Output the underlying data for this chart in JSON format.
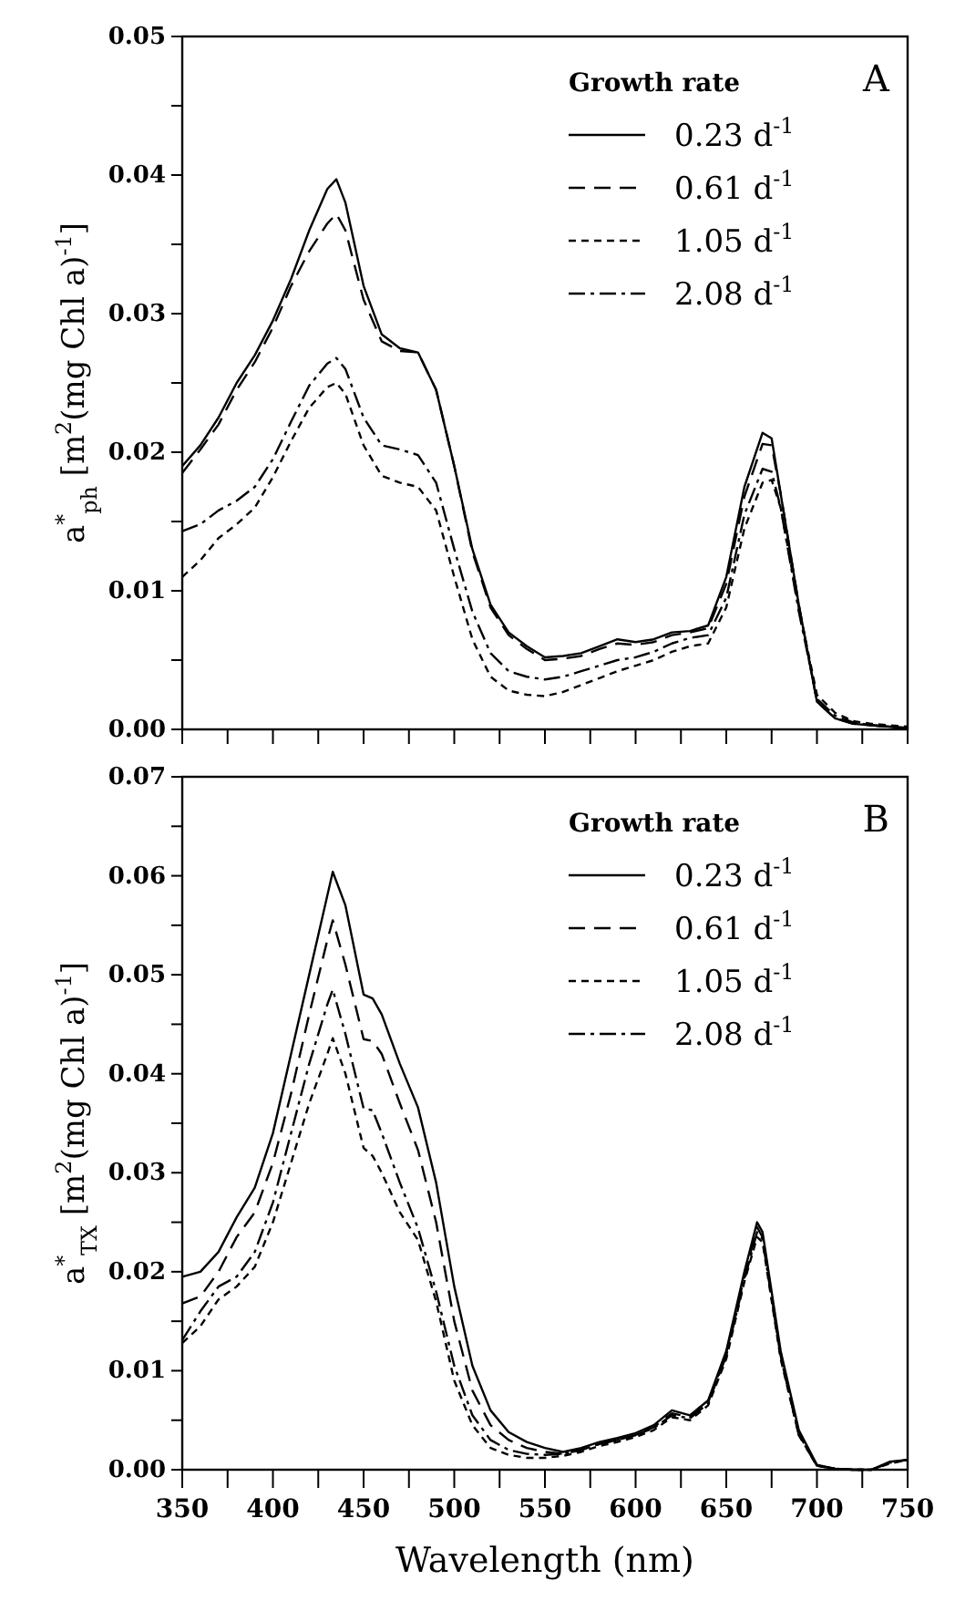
{
  "chart_data": [
    {
      "type": "line",
      "ylabel": "a$^{*}$$_{ph}$ [m$^{2}$(mg Chl a)$^{-1}$]",
      "legend_title": "Growth rate",
      "legend": "top right",
      "annotations": [
        "A"
      ],
      "tick_labels": "y",
      "xlim": [
        350,
        750
      ],
      "ylim": [
        0,
        0.05
      ],
      "xticks": [
        {
          "value": 350,
          "label": null
        },
        {
          "value": 375,
          "label": null
        },
        {
          "value": 400,
          "label": null
        },
        {
          "value": 425,
          "label": null
        },
        {
          "value": 450,
          "label": null
        },
        {
          "value": 475,
          "label": null
        },
        {
          "value": 500,
          "label": null
        },
        {
          "value": 525,
          "label": null
        },
        {
          "value": 550,
          "label": null
        },
        {
          "value": 575,
          "label": null
        },
        {
          "value": 600,
          "label": null
        },
        {
          "value": 625,
          "label": null
        },
        {
          "value": 650,
          "label": null
        },
        {
          "value": 675,
          "label": null
        },
        {
          "value": 700,
          "label": null
        },
        {
          "value": 725,
          "label": null
        },
        {
          "value": 750,
          "label": null
        }
      ],
      "yticks": [
        {
          "value": 0,
          "label": "0.00"
        },
        {
          "value": 0.005,
          "label": null
        },
        {
          "value": 0.01,
          "label": "0.01"
        },
        {
          "value": 0.015,
          "label": null
        },
        {
          "value": 0.02,
          "label": "0.02"
        },
        {
          "value": 0.025,
          "label": null
        },
        {
          "value": 0.03,
          "label": "0.03"
        },
        {
          "value": 0.035,
          "label": null
        },
        {
          "value": 0.04,
          "label": "0.04"
        },
        {
          "value": 0.045,
          "label": null
        },
        {
          "value": 0.05,
          "label": "0.05"
        }
      ],
      "x": [
        350,
        360,
        370,
        380,
        390,
        400,
        410,
        420,
        430,
        435,
        440,
        450,
        460,
        470,
        480,
        490,
        500,
        510,
        520,
        530,
        540,
        550,
        560,
        570,
        580,
        590,
        600,
        610,
        620,
        630,
        640,
        650,
        660,
        670,
        675,
        680,
        690,
        700,
        710,
        720,
        730,
        740,
        750
      ],
      "series": [
        {
          "name": "0.23 d$^{-1}$",
          "color": "#000000",
          "line_style": "solid",
          "values": [
            0.019,
            0.0205,
            0.0225,
            0.025,
            0.027,
            0.0295,
            0.0325,
            0.036,
            0.039,
            0.0397,
            0.038,
            0.032,
            0.0285,
            0.0275,
            0.0272,
            0.0245,
            0.019,
            0.013,
            0.009,
            0.007,
            0.006,
            0.0052,
            0.0053,
            0.0055,
            0.006,
            0.0065,
            0.0063,
            0.0065,
            0.007,
            0.0071,
            0.0075,
            0.011,
            0.0175,
            0.0214,
            0.021,
            0.017,
            0.009,
            0.002,
            0.0008,
            0.0004,
            0.0003,
            0.0002,
            0.0001
          ]
        },
        {
          "name": "0.61 d$^{-1}$",
          "color": "#000000",
          "line_style": "dashed",
          "values": [
            0.0185,
            0.0202,
            0.022,
            0.0245,
            0.0265,
            0.029,
            0.032,
            0.0345,
            0.0365,
            0.0372,
            0.036,
            0.031,
            0.028,
            0.0273,
            0.0272,
            0.0245,
            0.019,
            0.0128,
            0.0088,
            0.0068,
            0.0058,
            0.005,
            0.0051,
            0.0053,
            0.0058,
            0.0062,
            0.0061,
            0.0063,
            0.0068,
            0.007,
            0.0073,
            0.0105,
            0.0168,
            0.0206,
            0.0205,
            0.017,
            0.009,
            0.002,
            0.0008,
            0.0004,
            0.0003,
            0.0002,
            0.0001
          ]
        },
        {
          "name": "1.05 d$^{-1}$",
          "color": "#000000",
          "line_style": "dotted",
          "values": [
            0.011,
            0.0122,
            0.0138,
            0.0148,
            0.016,
            0.0182,
            0.0208,
            0.0232,
            0.0247,
            0.025,
            0.0242,
            0.0205,
            0.0183,
            0.0178,
            0.0175,
            0.0158,
            0.011,
            0.0065,
            0.0038,
            0.0028,
            0.0025,
            0.0024,
            0.0027,
            0.0032,
            0.0037,
            0.0042,
            0.0046,
            0.005,
            0.0056,
            0.006,
            0.0062,
            0.0088,
            0.0145,
            0.0178,
            0.018,
            0.016,
            0.0088,
            0.0025,
            0.0012,
            0.0006,
            0.0004,
            0.0003,
            0.0002
          ]
        },
        {
          "name": "2.08 d$^{-1}$",
          "color": "#000000",
          "line_style": "dashdot",
          "values": [
            0.0143,
            0.0148,
            0.0158,
            0.0165,
            0.0175,
            0.0195,
            0.0222,
            0.0248,
            0.0264,
            0.0268,
            0.026,
            0.0225,
            0.0205,
            0.0202,
            0.0198,
            0.0178,
            0.013,
            0.0085,
            0.0055,
            0.0042,
            0.0038,
            0.0036,
            0.0038,
            0.0042,
            0.0046,
            0.005,
            0.0052,
            0.0056,
            0.0062,
            0.0066,
            0.0068,
            0.0095,
            0.0155,
            0.0188,
            0.0186,
            0.016,
            0.0085,
            0.0022,
            0.001,
            0.0005,
            0.0003,
            0.0002,
            0.0001
          ]
        }
      ]
    },
    {
      "type": "line",
      "xlabel": "Wavelength (nm)",
      "ylabel": "a$^{*}$$_{TX}$ [m$^{2}$(mg Chl a)$^{-1}$]",
      "legend_title": "Growth rate",
      "legend": "top right",
      "annotations": [
        "B"
      ],
      "xlim": [
        350,
        750
      ],
      "ylim": [
        0,
        0.07
      ],
      "xticks": [
        350,
        {
          "value": 375,
          "label": null
        },
        400,
        {
          "value": 425,
          "label": null
        },
        450,
        {
          "value": 475,
          "label": null
        },
        500,
        {
          "value": 525,
          "label": null
        },
        550,
        {
          "value": 575,
          "label": null
        },
        600,
        {
          "value": 625,
          "label": null
        },
        650,
        {
          "value": 675,
          "label": null
        },
        700,
        {
          "value": 725,
          "label": null
        },
        750
      ],
      "yticks": [
        {
          "value": 0,
          "label": "0.00"
        },
        {
          "value": 0.005,
          "label": null
        },
        {
          "value": 0.01,
          "label": "0.01"
        },
        {
          "value": 0.015,
          "label": null
        },
        {
          "value": 0.02,
          "label": "0.02"
        },
        {
          "value": 0.025,
          "label": null
        },
        {
          "value": 0.03,
          "label": "0.03"
        },
        {
          "value": 0.035,
          "label": null
        },
        {
          "value": 0.04,
          "label": "0.04"
        },
        {
          "value": 0.045,
          "label": null
        },
        {
          "value": 0.05,
          "label": "0.05"
        },
        {
          "value": 0.055,
          "label": null
        },
        {
          "value": 0.06,
          "label": "0.06"
        },
        {
          "value": 0.065,
          "label": null
        },
        {
          "value": 0.07,
          "label": "0.07"
        }
      ],
      "x": [
        350,
        360,
        370,
        380,
        390,
        400,
        410,
        420,
        430,
        433,
        440,
        450,
        455,
        460,
        470,
        480,
        490,
        500,
        510,
        520,
        530,
        540,
        550,
        560,
        570,
        580,
        590,
        600,
        610,
        620,
        630,
        640,
        650,
        660,
        667,
        670,
        680,
        690,
        700,
        710,
        720,
        730,
        740,
        750
      ],
      "series": [
        {
          "name": "0.23 d$^{-1}$",
          "color": "#000000",
          "line_style": "solid",
          "values": [
            0.0195,
            0.02,
            0.022,
            0.0255,
            0.0285,
            0.034,
            0.042,
            0.05,
            0.058,
            0.0604,
            0.057,
            0.048,
            0.0476,
            0.046,
            0.041,
            0.0366,
            0.029,
            0.0185,
            0.0105,
            0.006,
            0.0038,
            0.0028,
            0.0022,
            0.0018,
            0.0022,
            0.0028,
            0.0032,
            0.0037,
            0.0045,
            0.006,
            0.0055,
            0.007,
            0.012,
            0.02,
            0.025,
            0.024,
            0.012,
            0.004,
            0.0005,
            0.0001,
            0,
            0,
            0.0008,
            0.001
          ]
        },
        {
          "name": "0.61 d$^{-1}$",
          "color": "#000000",
          "line_style": "dashed",
          "values": [
            0.0168,
            0.0175,
            0.02,
            0.0235,
            0.026,
            0.031,
            0.038,
            0.046,
            0.0535,
            0.0555,
            0.051,
            0.0435,
            0.0433,
            0.042,
            0.037,
            0.0323,
            0.025,
            0.015,
            0.008,
            0.0045,
            0.003,
            0.0022,
            0.0018,
            0.0016,
            0.002,
            0.0026,
            0.003,
            0.0035,
            0.0043,
            0.0057,
            0.0053,
            0.0068,
            0.0118,
            0.0195,
            0.0245,
            0.0235,
            0.0115,
            0.0035,
            0.0004,
            0.0001,
            0,
            0,
            0.0007,
            0.001
          ]
        },
        {
          "name": "1.05 d$^{-1}$",
          "color": "#000000",
          "line_style": "dotted",
          "values": [
            0.0128,
            0.0145,
            0.0172,
            0.0185,
            0.0205,
            0.025,
            0.031,
            0.037,
            0.042,
            0.0436,
            0.04,
            0.0325,
            0.0317,
            0.03,
            0.026,
            0.0232,
            0.017,
            0.009,
            0.0045,
            0.0022,
            0.0015,
            0.0012,
            0.0012,
            0.0014,
            0.0018,
            0.0024,
            0.0028,
            0.0033,
            0.004,
            0.0053,
            0.005,
            0.0065,
            0.0112,
            0.019,
            0.0235,
            0.023,
            0.0112,
            0.0035,
            0.0004,
            0.0001,
            0,
            0,
            0.0006,
            0.001
          ]
        },
        {
          "name": "2.08 d$^{-1}$",
          "color": "#000000",
          "line_style": "dashdot",
          "values": [
            0.0131,
            0.016,
            0.0185,
            0.0195,
            0.022,
            0.027,
            0.034,
            0.041,
            0.047,
            0.0485,
            0.044,
            0.0365,
            0.0363,
            0.034,
            0.029,
            0.0244,
            0.018,
            0.0105,
            0.0055,
            0.003,
            0.002,
            0.0016,
            0.0015,
            0.0016,
            0.002,
            0.0026,
            0.003,
            0.0035,
            0.0042,
            0.0055,
            0.0052,
            0.0067,
            0.0115,
            0.0192,
            0.024,
            0.0233,
            0.0114,
            0.0036,
            0.0004,
            0.0001,
            0,
            0,
            0.0007,
            0.001
          ]
        }
      ]
    }
  ]
}
